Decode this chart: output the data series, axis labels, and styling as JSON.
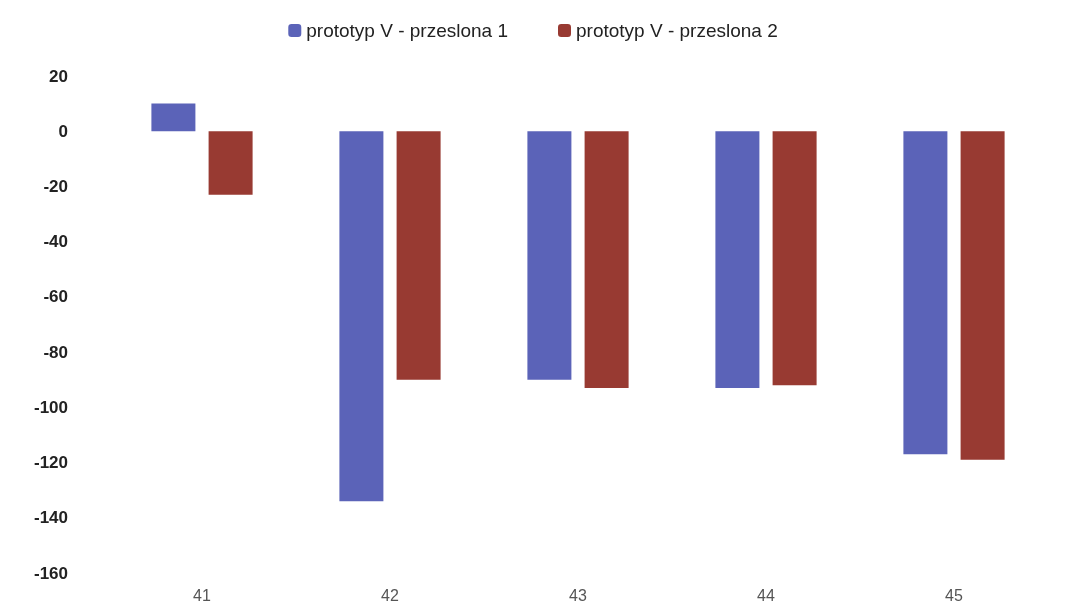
{
  "chart_data": {
    "type": "bar",
    "categories": [
      "41",
      "42",
      "43",
      "44",
      "45"
    ],
    "series": [
      {
        "name": "prototyp V - przeslona 1",
        "color": "#5b63b8",
        "values": [
          10,
          -134,
          -90,
          -93,
          -117
        ]
      },
      {
        "name": "prototyp V - przeslona 2",
        "color": "#983a32",
        "values": [
          -23,
          -90,
          -93,
          -92,
          -119
        ]
      }
    ],
    "ylim": [
      -160,
      20
    ],
    "yticks": [
      -160,
      -140,
      -120,
      -100,
      -80,
      -60,
      -40,
      -20,
      0,
      20
    ],
    "grid": false,
    "legend": "top"
  }
}
